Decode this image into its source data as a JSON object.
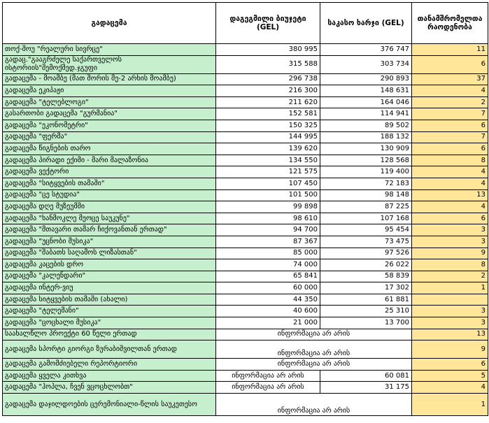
{
  "headers": {
    "program": "გადაცემა",
    "budget": "დაგეგმილი ბიუჯეტი (GEL)",
    "expense": "საკასო ხარჯი (GEL)",
    "staff": "თანამშრომელთა რაოდენობა"
  },
  "colors": {
    "name_column": "#c6efce",
    "staff_column": "#ffe699"
  },
  "no_info": "ინფორმაცია არ არის",
  "rows": [
    {
      "name": "თოქ-შოუ  \"რეალური სივრცე\"",
      "budget": "380 995",
      "expense": "376 747",
      "staff": "11"
    },
    {
      "name": "გადაც.\"გააგრძელე საქართველოს ისტორიის\"შემოქმედ.ჯგუფი",
      "budget": "315 588",
      "expense": "303 734",
      "staff": "6"
    },
    {
      "name": "გადაცემა - მოამბე (მათ შორის მე-2 არხის მოამბე)",
      "budget": "296 738",
      "expense": "290 893",
      "staff": "37"
    },
    {
      "name": "გადაცემა ეკიპაჟი",
      "budget": "216 300",
      "expense": "148 631",
      "staff": "4"
    },
    {
      "name": "გადაცემა  \"ტელებლოგი\"",
      "budget": "211 620",
      "expense": "164 046",
      "staff": "2"
    },
    {
      "name": "გასართობი გადაცემა  \"გურმანია\"",
      "budget": "152 581",
      "expense": "114 941",
      "staff": "7"
    },
    {
      "name": "გადაცემა  \"ეკონომეტრი\"",
      "budget": "150 325",
      "expense": "89 502",
      "staff": "6"
    },
    {
      "name": "გადაცემა  \"ფერმა\"",
      "budget": "144 995",
      "expense": "188 132",
      "staff": "7"
    },
    {
      "name": "გადაცემა წიგნების თარო",
      "budget": "139 620",
      "expense": "130 909",
      "staff": "6"
    },
    {
      "name": "გადაცემა პირადი ექიმი - მარი მალაზონია",
      "budget": "134 550",
      "expense": "128 568",
      "staff": "8"
    },
    {
      "name": "გადაცემა ვექტორი",
      "budget": "121 575",
      "expense": "119 400",
      "staff": "4"
    },
    {
      "name": "გადაცემა  \"სიტყვების თამაში\"",
      "budget": "107 450",
      "expense": "72 183",
      "staff": "4"
    },
    {
      "name": "გადაცემა  \"ცე სტუდია\"",
      "budget": "101 500",
      "expense": "98 148",
      "staff": "13"
    },
    {
      "name": "გადაცემა დღე მუზეუმში",
      "budget": "99 898",
      "expense": "87 225",
      "staff": "4"
    },
    {
      "name": "გადაცემა  \"ხანმოკლე მეოცე საუკუნე\"",
      "budget": "98 610",
      "expense": "107 168",
      "staff": "6"
    },
    {
      "name": "გადაცემა \"მთავარი თამარ ჩიქოვანთან ერთად\"",
      "budget": "94 700",
      "expense": "95 454",
      "staff": "3"
    },
    {
      "name": "გადაცემა  \"უცნობი მუსიკა\"",
      "budget": "87 367",
      "expense": "73 475",
      "staff": "3"
    },
    {
      "name": "გადაცემა  \"შაბათს საღამოს ლიზასთან\"",
      "budget": "85 000",
      "expense": "97 526",
      "staff": "9"
    },
    {
      "name": "გადაცემა კაცების დრო",
      "budget": "74 000",
      "expense": "26 022",
      "staff": "8"
    },
    {
      "name": "გადაცემა  \"კალენდარი\"",
      "budget": "65 841",
      "expense": "58 839",
      "staff": "2"
    },
    {
      "name": "გადაცემა ინტერ-ვიუ",
      "budget": "60 000",
      "expense": "17 302",
      "staff": "1"
    },
    {
      "name": "გადაცემა სიტყვების თამაში (ახალი)",
      "budget": "44 350",
      "expense": "61 881",
      "staff": ""
    },
    {
      "name": "გადაცემა  \"ტელემანი\"",
      "budget": "40 600",
      "expense": "25 310",
      "staff": "3"
    },
    {
      "name": "გადაცემა  \"ცოცხალი მუსიკა\"",
      "budget": "21 000",
      "expense": "13 700",
      "staff": "3"
    },
    {
      "name": "საახალწლო პროექტი 60 წელი ერთად",
      "merged": true,
      "staff": "13"
    },
    {
      "name": "გადაცემა  სპორტი გიორგი ზურაბიშვილთან ერთად",
      "merged": true,
      "bottom": true,
      "staff": "9"
    },
    {
      "name": "გადაცემა გამომძიებელი რეპორტიორი",
      "merged": true,
      "staff": "6"
    },
    {
      "name": "გადაცემა ყველა კითხვა",
      "budget_na": true,
      "expense": "60 081",
      "staff": "5"
    },
    {
      "name": "გადაცემა  \"ჰოპლა, ჩვენ ვცოცხლობთ\"",
      "budget_na": true,
      "expense": "31 175",
      "staff": "4"
    },
    {
      "name": "გადაცემა დაჯილდოების ცერემონიალი-წლის საუკეთესო",
      "merged": true,
      "bottom": true,
      "staff": "1"
    }
  ]
}
